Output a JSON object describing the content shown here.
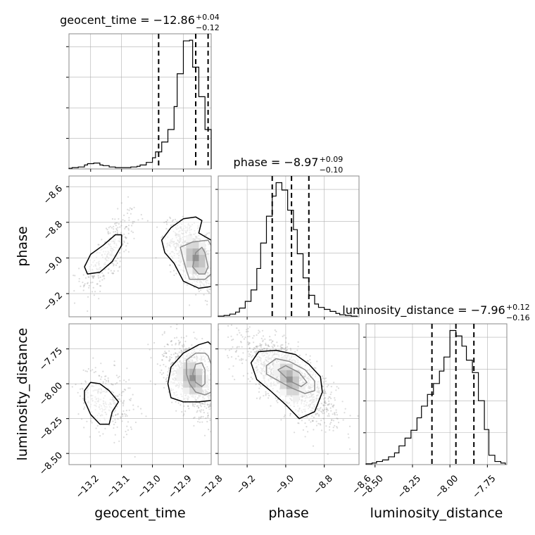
{
  "chart_data": {
    "type": "corner",
    "parameters": [
      "geocent_time",
      "phase",
      "luminosity_distance"
    ],
    "grid": true,
    "colors": {
      "line": "#000000",
      "samples": "#9a9a9a",
      "grid": "#b0b0b0",
      "frame": "#888888"
    },
    "diagonal": [
      {
        "parameter": "geocent_time",
        "title": {
          "prefix": "geocent_time = −12.86",
          "plus": "+0.04",
          "minus": "−0.12"
        },
        "quantiles": [
          -12.98,
          -12.86,
          -12.82
        ],
        "xlim": [
          -13.27,
          -12.81
        ],
        "bin_edges": [
          -13.27,
          -13.26,
          -13.24,
          -13.22,
          -13.21,
          -13.19,
          -13.17,
          -13.16,
          -13.14,
          -13.12,
          -13.1,
          -13.09,
          -13.07,
          -13.05,
          -13.04,
          -13.02,
          -13.0,
          -12.99,
          -12.97,
          -12.95,
          -12.93,
          -12.92,
          -12.9,
          -12.88,
          -12.87,
          -12.85,
          -12.83,
          -12.81
        ],
        "counts": [
          1,
          2,
          3,
          6,
          8,
          9,
          6,
          5,
          3,
          2,
          2,
          2,
          3,
          4,
          6,
          10,
          17,
          26,
          41,
          60,
          95,
          145,
          195,
          196,
          155,
          110,
          60
        ]
      },
      {
        "parameter": "phase",
        "title": {
          "prefix": "phase = −8.97",
          "plus": "+0.09",
          "minus": "−0.10"
        },
        "quantiles": [
          -9.07,
          -8.97,
          -8.88
        ],
        "xlim": [
          -9.35,
          -8.62
        ],
        "bin_edges": [
          -9.35,
          -9.32,
          -9.29,
          -9.26,
          -9.24,
          -9.21,
          -9.18,
          -9.15,
          -9.13,
          -9.1,
          -9.07,
          -9.05,
          -9.02,
          -8.99,
          -8.96,
          -8.94,
          -8.91,
          -8.88,
          -8.85,
          -8.83,
          -8.8,
          -8.77,
          -8.74,
          -8.72,
          -8.69,
          -8.66,
          -8.63
        ],
        "counts": [
          1,
          2,
          4,
          7,
          13,
          23,
          40,
          72,
          110,
          150,
          180,
          200,
          189,
          159,
          130,
          94,
          58,
          32,
          19,
          14,
          11,
          8,
          5,
          3,
          2,
          1
        ]
      },
      {
        "parameter": "luminosity_distance",
        "title": {
          "prefix": "luminosity_distance = −7.96",
          "plus": "+0.12",
          "minus": "−0.16"
        },
        "quantiles": [
          -8.12,
          -7.96,
          -7.84
        ],
        "xlim": [
          -8.56,
          -7.62
        ],
        "bin_edges": [
          -8.56,
          -8.52,
          -8.49,
          -8.45,
          -8.41,
          -8.37,
          -8.34,
          -8.3,
          -8.26,
          -8.22,
          -8.19,
          -8.15,
          -8.11,
          -8.07,
          -8.04,
          -8.0,
          -7.96,
          -7.92,
          -7.89,
          -7.85,
          -7.81,
          -7.77,
          -7.74,
          -7.7,
          -7.66,
          -7.63
        ],
        "counts": [
          1,
          2,
          4,
          6,
          10,
          15,
          24,
          34,
          44,
          60,
          75,
          90,
          104,
          120,
          138,
          172,
          165,
          152,
          134,
          118,
          82,
          45,
          12,
          4,
          2
        ]
      }
    ],
    "pairs": [
      {
        "x": "geocent_time",
        "y": "phase",
        "xlim": [
          -13.27,
          -12.81
        ],
        "ylim": [
          -9.33,
          -8.54
        ],
        "clusters": [
          {
            "center": [
              -13.14,
              -8.97
            ],
            "spread": [
              0.045,
              0.12
            ],
            "corr": 0.72,
            "weight": 0.22
          },
          {
            "center": [
              -12.86,
              -9.0
            ],
            "spread": [
              0.04,
              0.09
            ],
            "corr": -0.55,
            "weight": 0.78
          }
        ],
        "contours": [
          {
            "level": "inner",
            "points": [
              [
                -12.87,
                -9.05
              ],
              [
                -12.86,
                -8.97
              ],
              [
                -12.84,
                -8.94
              ],
              [
                -12.83,
                -8.97
              ],
              [
                -12.82,
                -9.05
              ],
              [
                -12.83,
                -9.09
              ],
              [
                -12.85,
                -9.09
              ]
            ]
          },
          {
            "level": "middle",
            "points": [
              [
                -12.9,
                -9.01
              ],
              [
                -12.91,
                -8.94
              ],
              [
                -12.87,
                -8.91
              ],
              [
                -12.82,
                -8.9
              ],
              [
                -12.81,
                -8.93
              ],
              [
                -12.81,
                -9.09
              ],
              [
                -12.83,
                -9.12
              ],
              [
                -12.88,
                -9.12
              ],
              [
                -12.89,
                -9.07
              ]
            ]
          },
          {
            "level": "outer",
            "points": [
              [
                -12.93,
                -9.03
              ],
              [
                -12.96,
                -8.97
              ],
              [
                -12.97,
                -8.9
              ],
              [
                -12.94,
                -8.83
              ],
              [
                -12.9,
                -8.78
              ],
              [
                -12.86,
                -8.77
              ],
              [
                -12.84,
                -8.79
              ],
              [
                -12.85,
                -8.86
              ],
              [
                -12.83,
                -8.88
              ],
              [
                -12.81,
                -8.9
              ],
              [
                -12.81,
                -9.16
              ],
              [
                -12.85,
                -9.17
              ],
              [
                -12.9,
                -9.13
              ]
            ]
          },
          {
            "level": "second-mode",
            "points": [
              [
                -13.22,
                -9.05
              ],
              [
                -13.2,
                -8.98
              ],
              [
                -13.16,
                -8.93
              ],
              [
                -13.12,
                -8.87
              ],
              [
                -13.1,
                -8.87
              ],
              [
                -13.1,
                -8.93
              ],
              [
                -13.13,
                -9.02
              ],
              [
                -13.17,
                -9.08
              ],
              [
                -13.21,
                -9.09
              ]
            ]
          }
        ]
      },
      {
        "x": "geocent_time",
        "y": "luminosity_distance",
        "xlim": [
          -13.27,
          -12.81
        ],
        "ylim": [
          -8.58,
          -7.57
        ],
        "clusters": [
          {
            "center": [
              -13.15,
              -8.12
            ],
            "spread": [
              0.045,
              0.12
            ],
            "corr": -0.3,
            "weight": 0.22
          },
          {
            "center": [
              -12.87,
              -7.96
            ],
            "spread": [
              0.045,
              0.13
            ],
            "corr": -0.45,
            "weight": 0.78
          }
        ],
        "contours": [
          {
            "level": "inner",
            "points": [
              [
                -12.87,
                -7.93
              ],
              [
                -12.86,
                -7.86
              ],
              [
                -12.84,
                -7.85
              ],
              [
                -12.83,
                -7.9
              ],
              [
                -12.83,
                -8.0
              ],
              [
                -12.84,
                -8.02
              ],
              [
                -12.86,
                -7.99
              ]
            ]
          },
          {
            "level": "middle",
            "points": [
              [
                -12.89,
                -7.93
              ],
              [
                -12.89,
                -7.83
              ],
              [
                -12.86,
                -7.78
              ],
              [
                -12.83,
                -7.78
              ],
              [
                -12.82,
                -7.8
              ],
              [
                -12.81,
                -7.86
              ],
              [
                -12.81,
                -8.06
              ],
              [
                -12.83,
                -8.08
              ],
              [
                -12.86,
                -8.06
              ],
              [
                -12.88,
                -8.0
              ]
            ]
          },
          {
            "level": "outer",
            "points": [
              [
                -12.95,
                -8.0
              ],
              [
                -12.94,
                -7.88
              ],
              [
                -12.9,
                -7.78
              ],
              [
                -12.85,
                -7.72
              ],
              [
                -12.82,
                -7.7
              ],
              [
                -12.81,
                -7.72
              ],
              [
                -12.81,
                -8.12
              ],
              [
                -12.85,
                -8.13
              ],
              [
                -12.9,
                -8.13
              ],
              [
                -12.94,
                -8.1
              ]
            ]
          },
          {
            "level": "second-mode",
            "points": [
              [
                -13.22,
                -8.05
              ],
              [
                -13.2,
                -7.99
              ],
              [
                -13.17,
                -8.0
              ],
              [
                -13.14,
                -8.05
              ],
              [
                -13.11,
                -8.13
              ],
              [
                -13.13,
                -8.2
              ],
              [
                -13.14,
                -8.29
              ],
              [
                -13.17,
                -8.29
              ],
              [
                -13.2,
                -8.22
              ],
              [
                -13.22,
                -8.12
              ]
            ]
          }
        ]
      },
      {
        "x": "phase",
        "y": "luminosity_distance",
        "xlim": [
          -9.35,
          -8.62
        ],
        "ylim": [
          -8.58,
          -7.57
        ],
        "clusters": [
          {
            "center": [
              -8.98,
              -7.97
            ],
            "spread": [
              0.12,
              0.15
            ],
            "corr": -0.72,
            "weight": 1.0
          }
        ],
        "contours": [
          {
            "level": "inner",
            "points": [
              [
                -9.04,
                -7.9
              ],
              [
                -9.0,
                -7.87
              ],
              [
                -8.93,
                -7.92
              ],
              [
                -8.89,
                -7.99
              ],
              [
                -8.92,
                -8.02
              ],
              [
                -8.98,
                -7.98
              ]
            ]
          },
          {
            "level": "middle",
            "points": [
              [
                -9.1,
                -7.87
              ],
              [
                -9.05,
                -7.82
              ],
              [
                -8.98,
                -7.84
              ],
              [
                -8.9,
                -7.9
              ],
              [
                -8.85,
                -7.98
              ],
              [
                -8.85,
                -8.05
              ],
              [
                -8.9,
                -8.07
              ],
              [
                -8.97,
                -8.03
              ],
              [
                -9.05,
                -7.97
              ],
              [
                -9.1,
                -7.93
              ]
            ]
          },
          {
            "level": "outer",
            "points": [
              [
                -9.18,
                -7.85
              ],
              [
                -9.14,
                -7.77
              ],
              [
                -9.05,
                -7.76
              ],
              [
                -8.95,
                -7.79
              ],
              [
                -8.88,
                -7.86
              ],
              [
                -8.82,
                -7.95
              ],
              [
                -8.81,
                -8.06
              ],
              [
                -8.85,
                -8.2
              ],
              [
                -8.93,
                -8.25
              ],
              [
                -9.0,
                -8.15
              ],
              [
                -9.08,
                -8.05
              ],
              [
                -9.15,
                -7.97
              ]
            ]
          }
        ]
      }
    ],
    "axes": {
      "geocent_time": {
        "label": "geocent_time",
        "ticks": [
          -13.2,
          -13.1,
          -13.0,
          -12.9,
          -12.8
        ],
        "tick_labels": [
          "−13.2",
          "−13.1",
          "−13.0",
          "−12.9",
          "−12.8"
        ]
      },
      "phase": {
        "label": "phase",
        "x_ticks": [
          -9.2,
          -9.0,
          -8.8,
          -8.6
        ],
        "x_tick_labels": [
          "−9.2",
          "−9.0",
          "−8.8",
          "−8.6"
        ],
        "y_ticks": [
          -8.6,
          -8.8,
          -9.0,
          -9.2
        ],
        "y_tick_labels": [
          "−8.6",
          "−8.8",
          "−9.0",
          "−9.2"
        ]
      },
      "luminosity_distance": {
        "label": "luminosity_distance",
        "x_ticks": [
          -8.5,
          -8.25,
          -8.0,
          -7.75
        ],
        "x_tick_labels": [
          "−8.50",
          "−8.25",
          "−8.00",
          "−7.75"
        ],
        "y_ticks": [
          -7.75,
          -8.0,
          -8.25,
          -8.5
        ],
        "y_tick_labels": [
          "−7.75",
          "−8.00",
          "−8.25",
          "−8.50"
        ]
      }
    }
  }
}
